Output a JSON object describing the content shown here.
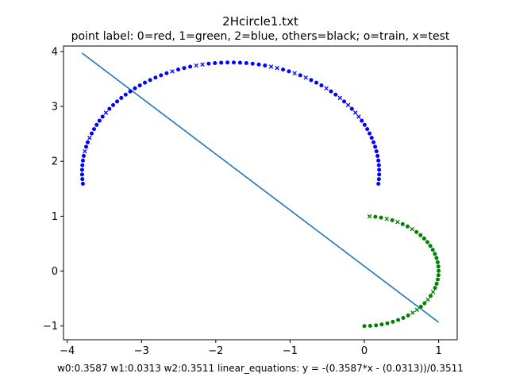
{
  "chart_data": {
    "type": "scatter",
    "title": "2Hcircle1.txt",
    "subtitle": "point label: 0=red, 1=green, 2=blue, others=black; o=train, x=test",
    "footer": "w0:0.3587  w1:0.0313  w2:0.3511    linear_equations: y = -(0.3587*x - (0.0313))/0.3511",
    "xlabel": "",
    "ylabel": "",
    "xlim": [
      -4.05,
      1.25
    ],
    "ylim": [
      -1.25,
      4.1
    ],
    "x_ticks": [
      -4,
      -3,
      -2,
      -1,
      0,
      1
    ],
    "x_tick_labels": [
      "−4",
      "−3",
      "−2",
      "−1",
      "0",
      "1"
    ],
    "y_ticks": [
      -1,
      0,
      1,
      2,
      3,
      4
    ],
    "y_tick_labels": [
      "−1",
      "0",
      "1",
      "2",
      "3",
      "4"
    ],
    "grid": false,
    "colors": {
      "label1": "#008000",
      "label2": "#0000ff",
      "line": "#1f77b4"
    },
    "series": [
      {
        "label": 2,
        "marker_train": "o",
        "marker_test": "x",
        "curve": {
          "center": [
            -1.8,
            1.8
          ],
          "radius": 2.0,
          "angle_start_deg": -6,
          "angle_end_deg": 186,
          "n_points": 80
        },
        "test_indices": [
          15,
          16,
          18,
          20,
          23,
          27,
          29,
          32,
          33,
          44,
          45,
          49,
          63,
          69,
          72
        ]
      },
      {
        "label": 1,
        "marker_train": "o",
        "marker_test": "x",
        "curve": {
          "center": [
            0,
            0
          ],
          "radius": 1.0,
          "angle_start_deg": -90,
          "angle_end_deg": 86,
          "n_points": 40
        },
        "test_indices": [
          9,
          10,
          13,
          15,
          31,
          34,
          36,
          39
        ]
      }
    ],
    "decision_line": {
      "w0": 0.3587,
      "w1": 0.0313,
      "w2": 0.3511,
      "x_range": [
        -3.8,
        1.0
      ]
    }
  }
}
